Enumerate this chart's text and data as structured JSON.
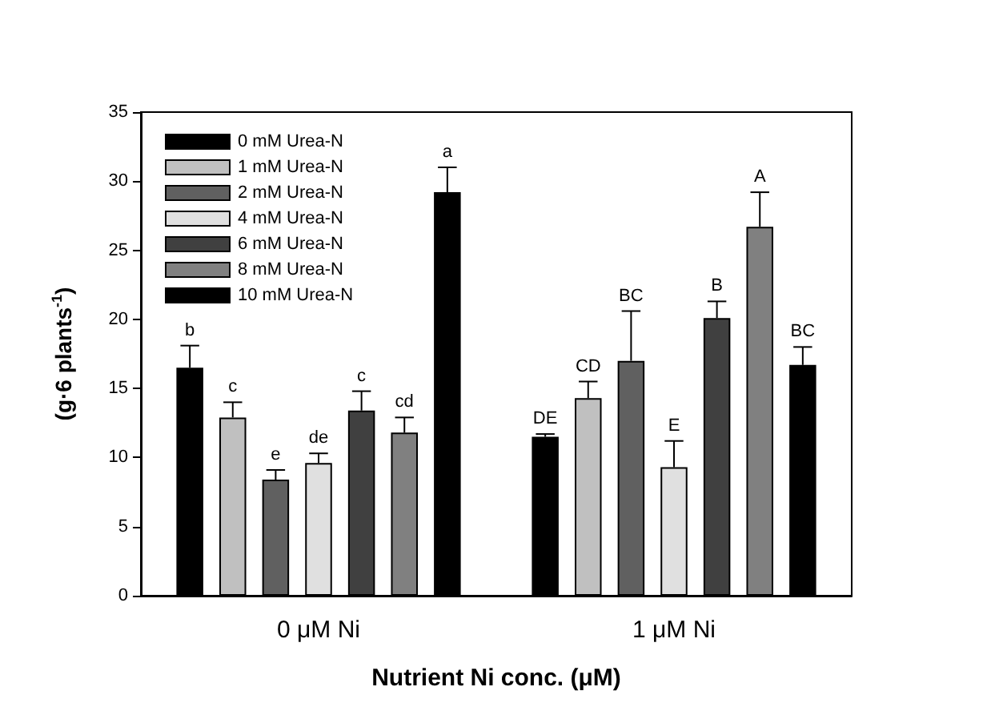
{
  "chart_data": {
    "type": "bar",
    "xlabel": "Nutrient Ni conc. (μM)",
    "ylabel": "(g·6 plants$^{-1}$)",
    "categories": [
      "0 μM Ni",
      "1 μM Ni"
    ],
    "series": [
      {
        "name": "0 mM Urea-N",
        "color": "#000000",
        "values": [
          16.5,
          11.5
        ],
        "errors": [
          [
            16.5,
            18.1
          ],
          [
            11.5,
            11.7
          ]
        ],
        "value_labels": [
          "b",
          "DE"
        ]
      },
      {
        "name": "1 mM Urea-N",
        "color": "#c0c0c0",
        "values": [
          12.9,
          14.3
        ],
        "errors": [
          [
            12.9,
            14.0
          ],
          [
            14.3,
            15.5
          ]
        ],
        "value_labels": [
          "c",
          "CD"
        ]
      },
      {
        "name": "2 mM Urea-N",
        "color": "#606060",
        "values": [
          8.4,
          17.0
        ],
        "errors": [
          [
            8.4,
            9.1
          ],
          [
            17.0,
            20.6
          ]
        ],
        "value_labels": [
          "e",
          "BC"
        ]
      },
      {
        "name": "4 mM Urea-N",
        "color": "#e0e0e0",
        "values": [
          9.6,
          9.3
        ],
        "errors": [
          [
            9.6,
            10.3
          ],
          [
            9.3,
            11.2
          ]
        ],
        "value_labels": [
          "de",
          "E"
        ]
      },
      {
        "name": "6 mM Urea-N",
        "color": "#404040",
        "values": [
          13.4,
          20.1
        ],
        "errors": [
          [
            13.4,
            14.8
          ],
          [
            20.1,
            21.3
          ]
        ],
        "value_labels": [
          "c",
          "B"
        ]
      },
      {
        "name": "8 mM Urea-N",
        "color": "#808080",
        "values": [
          11.8,
          26.7
        ],
        "errors": [
          [
            11.8,
            12.9
          ],
          [
            26.7,
            29.2
          ]
        ],
        "value_labels": [
          "cd",
          "A"
        ]
      },
      {
        "name": "10 mM Urea-N",
        "color": "#000000",
        "values": [
          29.2,
          16.7
        ],
        "errors": [
          [
            29.2,
            31.0
          ],
          [
            16.7,
            18.0
          ]
        ],
        "value_labels": [
          "a",
          "BC"
        ]
      }
    ],
    "ylim": [
      0,
      35
    ],
    "yticks": [
      0,
      5,
      10,
      15,
      20,
      25,
      30,
      35
    ],
    "grid": false,
    "legend": "top left"
  }
}
